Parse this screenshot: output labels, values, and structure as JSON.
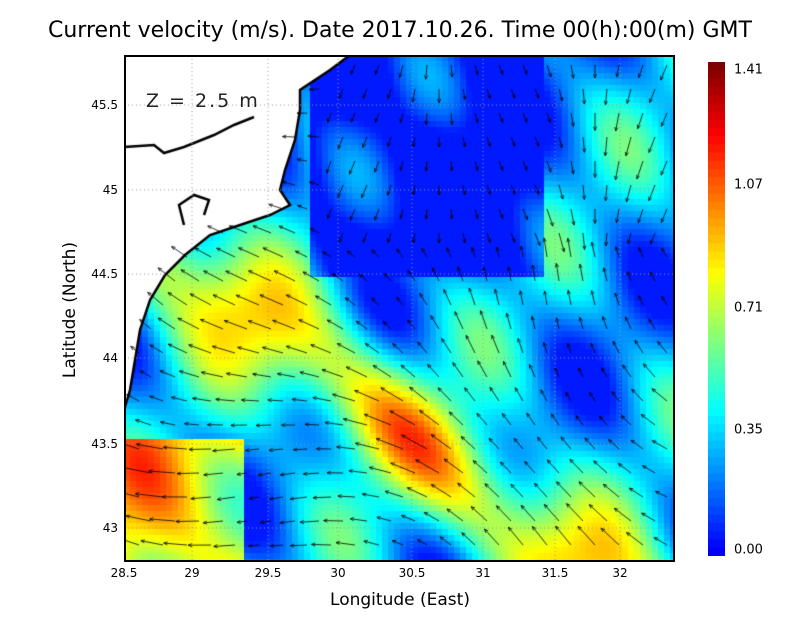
{
  "title": "Current velocity (m/s). Date 2017.10.26. Time 00(h):00(m) GMT",
  "depth_label": "Z = 2.5 m",
  "xlabel": "Longitude (East)",
  "ylabel": "Latitude (North)",
  "x_ticks": [
    "28.5",
    "29",
    "29.5",
    "30",
    "30.5",
    "31",
    "31.5",
    "32"
  ],
  "y_ticks": [
    "45.5",
    "45",
    "44.5",
    "44",
    "43.5",
    "43"
  ],
  "x_range": [
    28.5,
    32.39
  ],
  "y_range": [
    42.8,
    45.8
  ],
  "colorbar": {
    "ticks": [
      "1.41",
      "1.07",
      "0.71",
      "0.35",
      "0.00"
    ],
    "min": 0,
    "max": 1.41,
    "colormap": "jet"
  },
  "land_color": "#ffffff",
  "coast_color": "#000000"
}
